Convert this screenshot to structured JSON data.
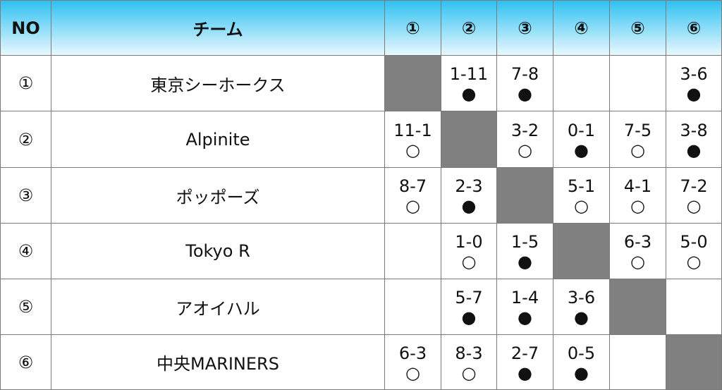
{
  "table": {
    "header": [
      "NO",
      "チーム",
      "①",
      "②",
      "③",
      "④",
      "⑤",
      "⑥"
    ],
    "rows": [
      {
        "no": "①",
        "team": "東京シーホークス",
        "cells": [
          null,
          {
            "score": "1-11",
            "result": "●"
          },
          {
            "score": "7-8",
            "result": "●"
          },
          null,
          null,
          {
            "score": "3-6",
            "result": "●"
          }
        ]
      },
      {
        "no": "②",
        "team": "Alpinite",
        "cells": [
          {
            "score": "11-1",
            "result": "○"
          },
          null,
          {
            "score": "3-2",
            "result": "○"
          },
          {
            "score": "0-1",
            "result": "●"
          },
          {
            "score": "7-5",
            "result": "○"
          },
          {
            "score": "3-8",
            "result": "●"
          }
        ]
      },
      {
        "no": "③",
        "team": "ポッポーズ",
        "cells": [
          {
            "score": "8-7",
            "result": "○"
          },
          {
            "score": "2-3",
            "result": "●"
          },
          null,
          {
            "score": "5-1",
            "result": "○"
          },
          {
            "score": "4-1",
            "result": "○"
          },
          {
            "score": "7-2",
            "result": "○"
          }
        ]
      },
      {
        "no": "④",
        "team": "Tokyo R",
        "cells": [
          null,
          {
            "score": "1-0",
            "result": "○"
          },
          {
            "score": "1-5",
            "result": "●"
          },
          null,
          {
            "score": "6-3",
            "result": "○"
          },
          {
            "score": "5-0",
            "result": "○"
          }
        ]
      },
      {
        "no": "⑤",
        "team": "アオイハル",
        "cells": [
          null,
          {
            "score": "5-7",
            "result": "●"
          },
          {
            "score": "1-4",
            "result": "●"
          },
          {
            "score": "3-6",
            "result": "●"
          },
          null,
          null
        ]
      },
      {
        "no": "⑥",
        "team": "中央MARINERS",
        "cells": [
          {
            "score": "6-3",
            "result": "○"
          },
          {
            "score": "8-3",
            "result": "○"
          },
          {
            "score": "2-7",
            "result": "●"
          },
          {
            "score": "0-5",
            "result": "●"
          },
          null,
          null
        ]
      }
    ]
  }
}
